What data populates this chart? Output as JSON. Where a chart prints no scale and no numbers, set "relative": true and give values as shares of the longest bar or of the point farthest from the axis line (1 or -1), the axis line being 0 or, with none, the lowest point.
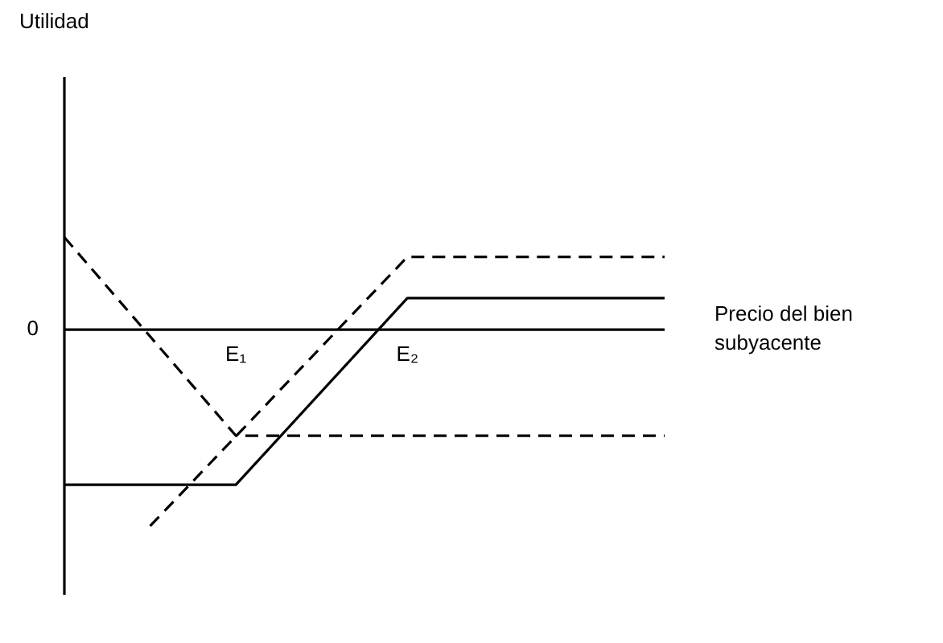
{
  "chart_data": {
    "type": "line",
    "relative": true,
    "xlabel": "Precio del bien subyacente",
    "annotations": [
      "Utilidad",
      "0"
    ],
    "categories": [
      null,
      null,
      "E₁",
      null,
      "E₂",
      null,
      null,
      null
    ],
    "legend": false,
    "marker": "none",
    "series": [
      {
        "color": "#000000",
        "line_style": "solid",
        "values": [
          -0.79,
          null,
          -0.79,
          null,
          0.16,
          null,
          null,
          0.16
        ]
      },
      {
        "color": "#000000",
        "line_style": "dashed",
        "values": [
          0.47,
          null,
          -0.54,
          null,
          null,
          null,
          null,
          -0.54
        ]
      },
      {
        "color": "#000000",
        "line_style": "dashed",
        "values": [
          null,
          -1,
          null,
          null,
          0.37,
          null,
          null,
          0.37
        ]
      }
    ]
  }
}
